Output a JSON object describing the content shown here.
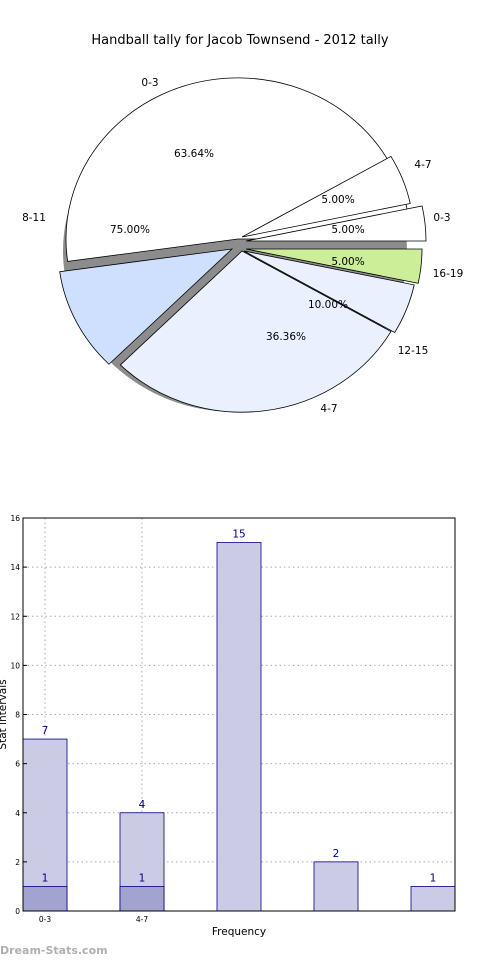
{
  "watermark": "Dream-Stats.com",
  "colors": {
    "outer_fill": "#ffffff",
    "outer_fill_b": "#cfe0ff",
    "inner_fill": "#eaf0fd",
    "green": "#ccee99",
    "bar_fill": "#cbcbe5",
    "bar_overlay": "#a3a3d0",
    "bar_stroke": "#000080",
    "label_color": "#000080"
  },
  "chart_data": [
    {
      "type": "pie",
      "title": "Handball tally for Jacob Townsend - 2012 tally",
      "rings": [
        {
          "name": "outer",
          "slices": [
            {
              "label": "0-3",
              "value": 63.64,
              "value_label": "63.64%"
            },
            {
              "label": "4-7",
              "value": 5.0,
              "value_label": "5.00%"
            },
            {
              "label": "0-3",
              "value": 5.0,
              "value_label": "5.00%"
            },
            {
              "label": "16-19",
              "value": 5.0,
              "value_label": "5.00%"
            },
            {
              "label": "12-15",
              "value": 10.0,
              "value_label": "10.00%"
            },
            {
              "label": "4-7",
              "value": 36.36,
              "value_label": "36.36%"
            },
            {
              "label": "8-11",
              "value": 75.0,
              "value_label": "75.00%"
            }
          ]
        }
      ]
    },
    {
      "type": "bar",
      "xlabel": "Frequency",
      "ylabel": "Stat intervals",
      "ylim": [
        0,
        16
      ],
      "yticks": [
        0,
        2,
        4,
        6,
        8,
        10,
        12,
        14,
        16
      ],
      "grid": true,
      "categories": [
        "0-3",
        "4-7",
        "",
        "",
        ""
      ],
      "series": [
        {
          "values": [
            7,
            4,
            15,
            2,
            1
          ]
        },
        {
          "values": [
            1,
            1,
            null,
            null,
            null
          ]
        }
      ],
      "value_labels": [
        [
          "7",
          "4",
          "15",
          "2",
          "1"
        ],
        [
          "1",
          "1",
          "",
          "",
          ""
        ]
      ]
    }
  ]
}
